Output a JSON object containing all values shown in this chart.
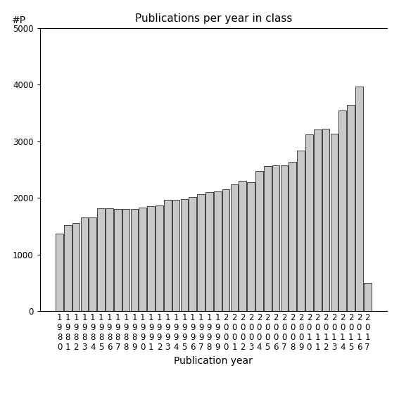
{
  "title": "Publications per year in class",
  "xlabel": "Publication year",
  "ylabel": "#P",
  "years": [
    "1980",
    "1981",
    "1982",
    "1983",
    "1984",
    "1985",
    "1986",
    "1987",
    "1988",
    "1989",
    "1990",
    "1991",
    "1992",
    "1993",
    "1994",
    "1995",
    "1996",
    "1997",
    "1998",
    "1999",
    "2000",
    "2001",
    "2002",
    "2003",
    "2004",
    "2005",
    "2006",
    "2007",
    "2008",
    "2009",
    "2010",
    "2011",
    "2012",
    "2013",
    "2014",
    "2015",
    "2016",
    "2017"
  ],
  "values": [
    1370,
    1520,
    1550,
    1650,
    1660,
    1820,
    1820,
    1800,
    1810,
    1810,
    1830,
    1850,
    1870,
    1960,
    1970,
    1980,
    2020,
    2060,
    2100,
    2110,
    2150,
    2240,
    2300,
    2270,
    2480,
    2560,
    2570,
    2580,
    2640,
    2830,
    3120,
    3210,
    3220,
    3130,
    3540,
    3640,
    3970,
    500
  ],
  "bar_color": "#c8c8c8",
  "bar_edge_color": "#000000",
  "background_color": "#ffffff",
  "ylim": [
    0,
    5000
  ],
  "yticks": [
    0,
    1000,
    2000,
    3000,
    4000,
    5000
  ],
  "title_fontsize": 11,
  "axis_label_fontsize": 10,
  "tick_fontsize": 8.5
}
